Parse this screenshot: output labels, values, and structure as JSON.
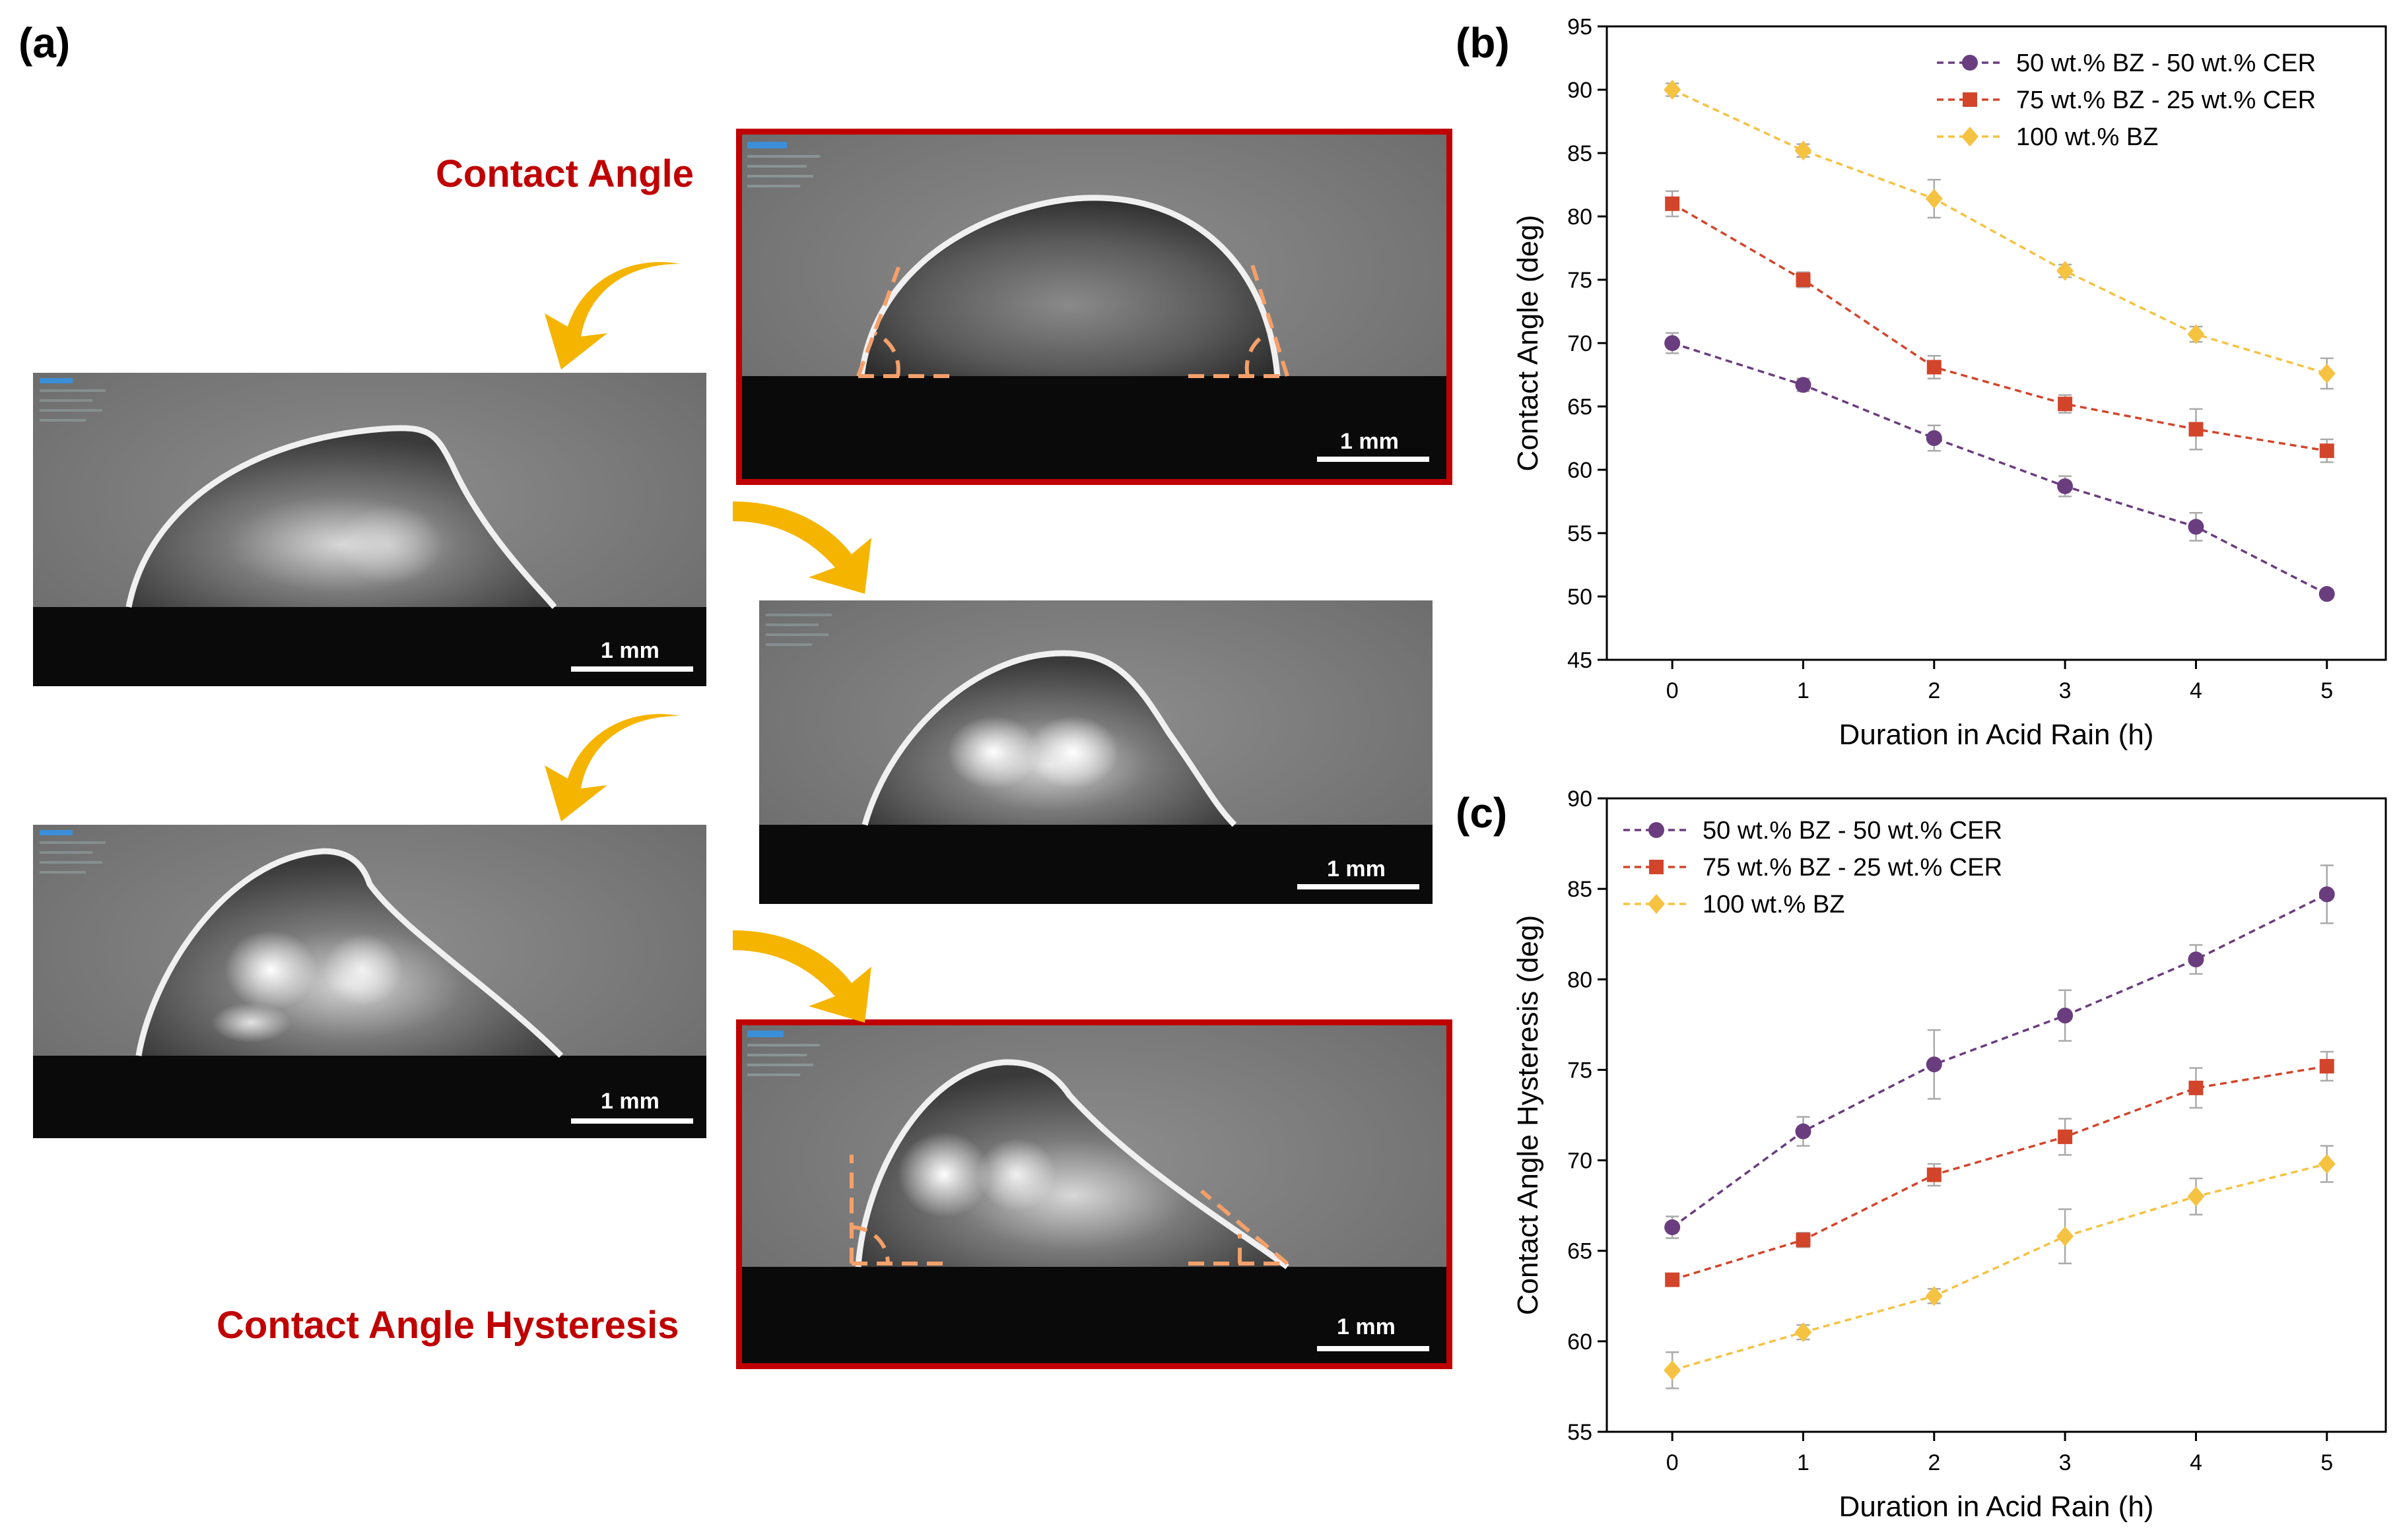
{
  "panel_labels": {
    "a": "(a)",
    "b": "(b)",
    "c": "(c)"
  },
  "captions": {
    "contact_angle": "Contact Angle",
    "hysteresis": "Contact Angle Hysteresis"
  },
  "scale_bar": "1 mm",
  "colors": {
    "purple": "#6a3d7f",
    "red": "#d2452b",
    "yellow": "#f5c242",
    "frame_red": "#c00000",
    "arrow": "#f5b400"
  },
  "chart_data": [
    {
      "type": "line",
      "panel": "(b)",
      "xlabel": "Duration in Acid Rain (h)",
      "ylabel": "Contact Angle (deg)",
      "x": [
        0,
        1,
        2,
        3,
        4,
        5
      ],
      "xlim": [
        -0.5,
        5.45
      ],
      "ylim": [
        45,
        95
      ],
      "yticks": [
        45,
        50,
        55,
        60,
        65,
        70,
        75,
        80,
        85,
        90,
        95
      ],
      "legend_position": "top-right",
      "series": [
        {
          "name": "50 wt.% BZ - 50 wt.% CER",
          "color": "#6a3d7f",
          "marker": "circle",
          "values": [
            70.0,
            66.7,
            62.5,
            58.7,
            55.5,
            50.2
          ],
          "errors": [
            0.8,
            0.5,
            1.0,
            0.8,
            1.1,
            0.3
          ]
        },
        {
          "name": "75 wt.% BZ - 25 wt.% CER",
          "color": "#d2452b",
          "marker": "square",
          "values": [
            81.0,
            75.0,
            68.1,
            65.2,
            63.2,
            61.5
          ],
          "errors": [
            1.0,
            0.6,
            0.9,
            0.7,
            1.6,
            0.9
          ]
        },
        {
          "name": "100 wt.% BZ",
          "color": "#f5c242",
          "marker": "diamond",
          "values": [
            90.0,
            85.2,
            81.4,
            75.7,
            70.7,
            67.6
          ],
          "errors": [
            0.5,
            0.5,
            1.5,
            0.5,
            0.6,
            1.2
          ]
        }
      ]
    },
    {
      "type": "line",
      "panel": "(c)",
      "xlabel": "Duration in Acid Rain (h)",
      "ylabel": "Contact Angle Hysteresis (deg)",
      "x": [
        0,
        1,
        2,
        3,
        4,
        5
      ],
      "xlim": [
        -0.5,
        5.45
      ],
      "ylim": [
        55,
        90
      ],
      "yticks": [
        55,
        60,
        65,
        70,
        75,
        80,
        85,
        90
      ],
      "legend_position": "top-left",
      "series": [
        {
          "name": "50 wt.% BZ - 50 wt.% CER",
          "color": "#6a3d7f",
          "marker": "circle",
          "values": [
            66.3,
            71.6,
            75.3,
            78.0,
            81.1,
            84.7
          ],
          "errors": [
            0.6,
            0.8,
            1.9,
            1.4,
            0.8,
            1.6
          ]
        },
        {
          "name": "75 wt.% BZ - 25 wt.% CER",
          "color": "#d2452b",
          "marker": "square",
          "values": [
            63.4,
            65.6,
            69.2,
            71.3,
            74.0,
            75.2
          ],
          "errors": [
            0.3,
            0.4,
            0.6,
            1.0,
            1.1,
            0.8
          ]
        },
        {
          "name": "100 wt.% BZ",
          "color": "#f5c242",
          "marker": "diamond",
          "values": [
            58.4,
            60.5,
            62.5,
            65.8,
            68.0,
            69.8
          ],
          "errors": [
            1.0,
            0.4,
            0.4,
            1.5,
            1.0,
            1.0
          ]
        }
      ]
    }
  ]
}
